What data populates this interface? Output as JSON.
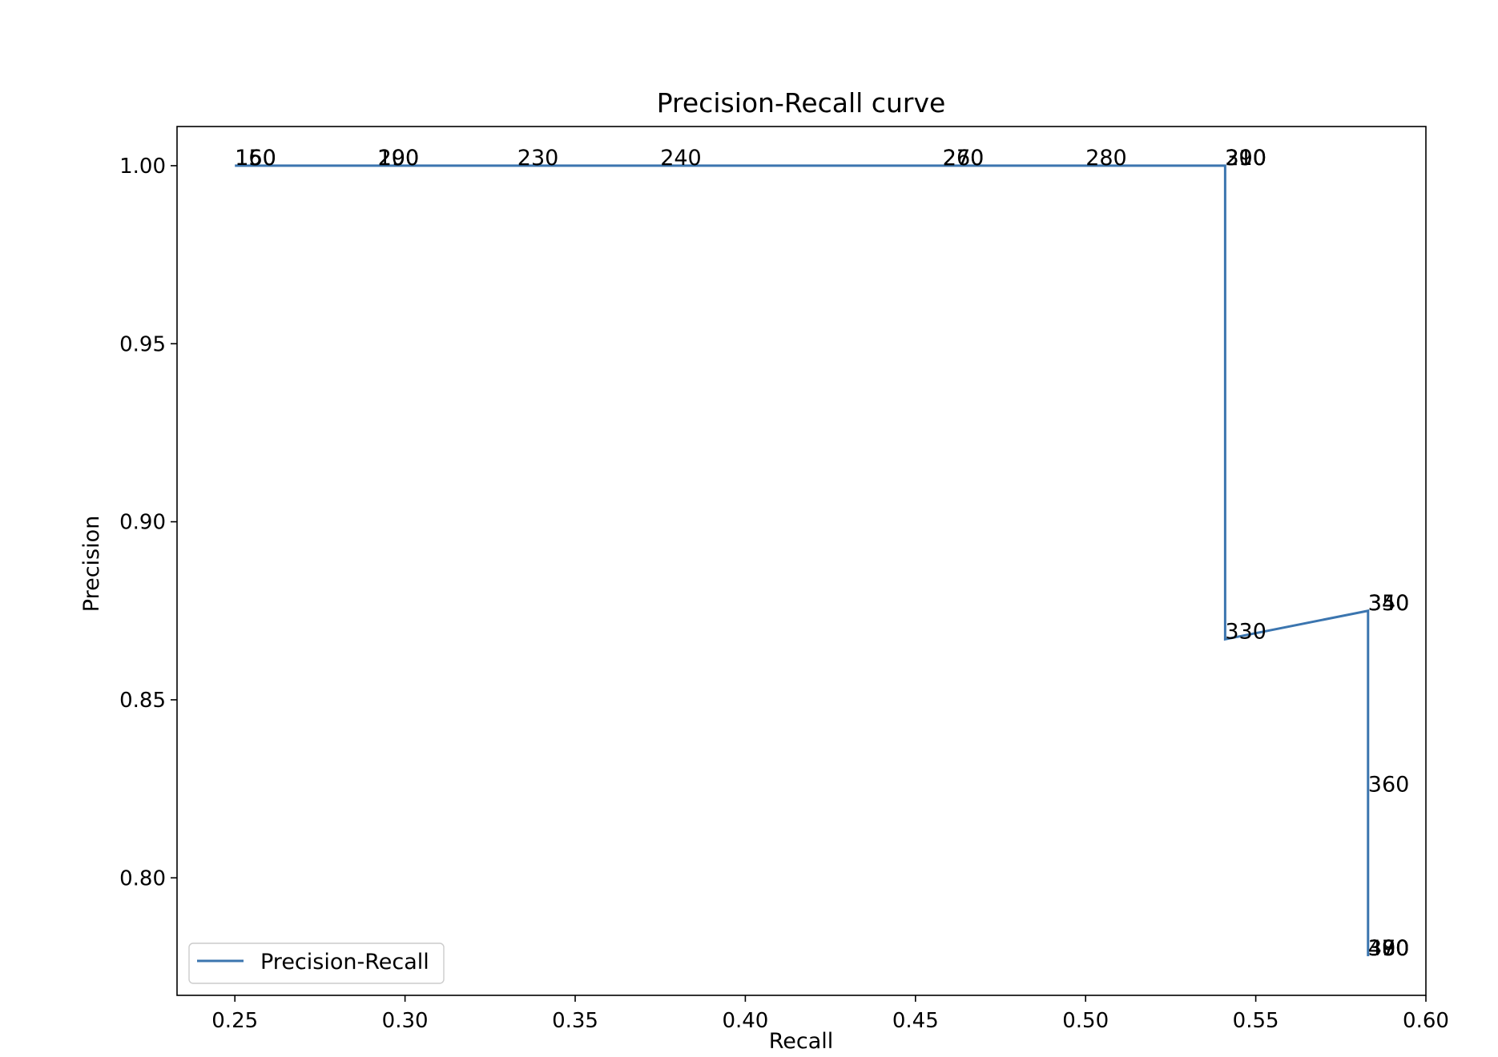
{
  "chart_data": {
    "type": "line",
    "title": "Precision-Recall curve",
    "xlabel": "Recall",
    "ylabel": "Precision",
    "xlim": [
      0.233,
      0.6
    ],
    "ylim": [
      0.767,
      1.011
    ],
    "xticks": [
      {
        "v": 0.25,
        "label": "0.25"
      },
      {
        "v": 0.3,
        "label": "0.30"
      },
      {
        "v": 0.35,
        "label": "0.35"
      },
      {
        "v": 0.4,
        "label": "0.40"
      },
      {
        "v": 0.45,
        "label": "0.45"
      },
      {
        "v": 0.5,
        "label": "0.50"
      },
      {
        "v": 0.55,
        "label": "0.55"
      },
      {
        "v": 0.6,
        "label": "0.60"
      }
    ],
    "yticks": [
      {
        "v": 0.8,
        "label": "0.80"
      },
      {
        "v": 0.85,
        "label": "0.85"
      },
      {
        "v": 0.9,
        "label": "0.90"
      },
      {
        "v": 0.95,
        "label": "0.95"
      },
      {
        "v": 1.0,
        "label": "1.00"
      }
    ],
    "grid": false,
    "legend_position": "lower-left",
    "series": [
      {
        "name": "Precision-Recall",
        "color": "#3b75af",
        "x": [
          0.25,
          0.541,
          0.541,
          0.583,
          0.583
        ],
        "y": [
          1.0,
          1.0,
          0.867,
          0.875,
          0.778
        ]
      }
    ],
    "annotations": [
      {
        "text": "150",
        "x": 0.25,
        "y": 1.0
      },
      {
        "text": "160",
        "x": 0.25,
        "y": 1.0
      },
      {
        "text": "190",
        "x": 0.292,
        "y": 1.0
      },
      {
        "text": "200",
        "x": 0.292,
        "y": 1.0
      },
      {
        "text": "230",
        "x": 0.333,
        "y": 1.0
      },
      {
        "text": "240",
        "x": 0.375,
        "y": 1.0
      },
      {
        "text": "260",
        "x": 0.458,
        "y": 1.0
      },
      {
        "text": "270",
        "x": 0.458,
        "y": 1.0
      },
      {
        "text": "280",
        "x": 0.5,
        "y": 1.0
      },
      {
        "text": "290",
        "x": 0.541,
        "y": 1.0
      },
      {
        "text": "300",
        "x": 0.541,
        "y": 1.0
      },
      {
        "text": "310",
        "x": 0.541,
        "y": 1.0
      },
      {
        "text": "330",
        "x": 0.541,
        "y": 0.867
      },
      {
        "text": "340",
        "x": 0.583,
        "y": 0.875
      },
      {
        "text": "350",
        "x": 0.583,
        "y": 0.875
      },
      {
        "text": "360",
        "x": 0.583,
        "y": 0.824
      },
      {
        "text": "370",
        "x": 0.583,
        "y": 0.778
      },
      {
        "text": "380",
        "x": 0.583,
        "y": 0.778
      },
      {
        "text": "390",
        "x": 0.583,
        "y": 0.778
      },
      {
        "text": "400",
        "x": 0.583,
        "y": 0.778
      }
    ]
  }
}
